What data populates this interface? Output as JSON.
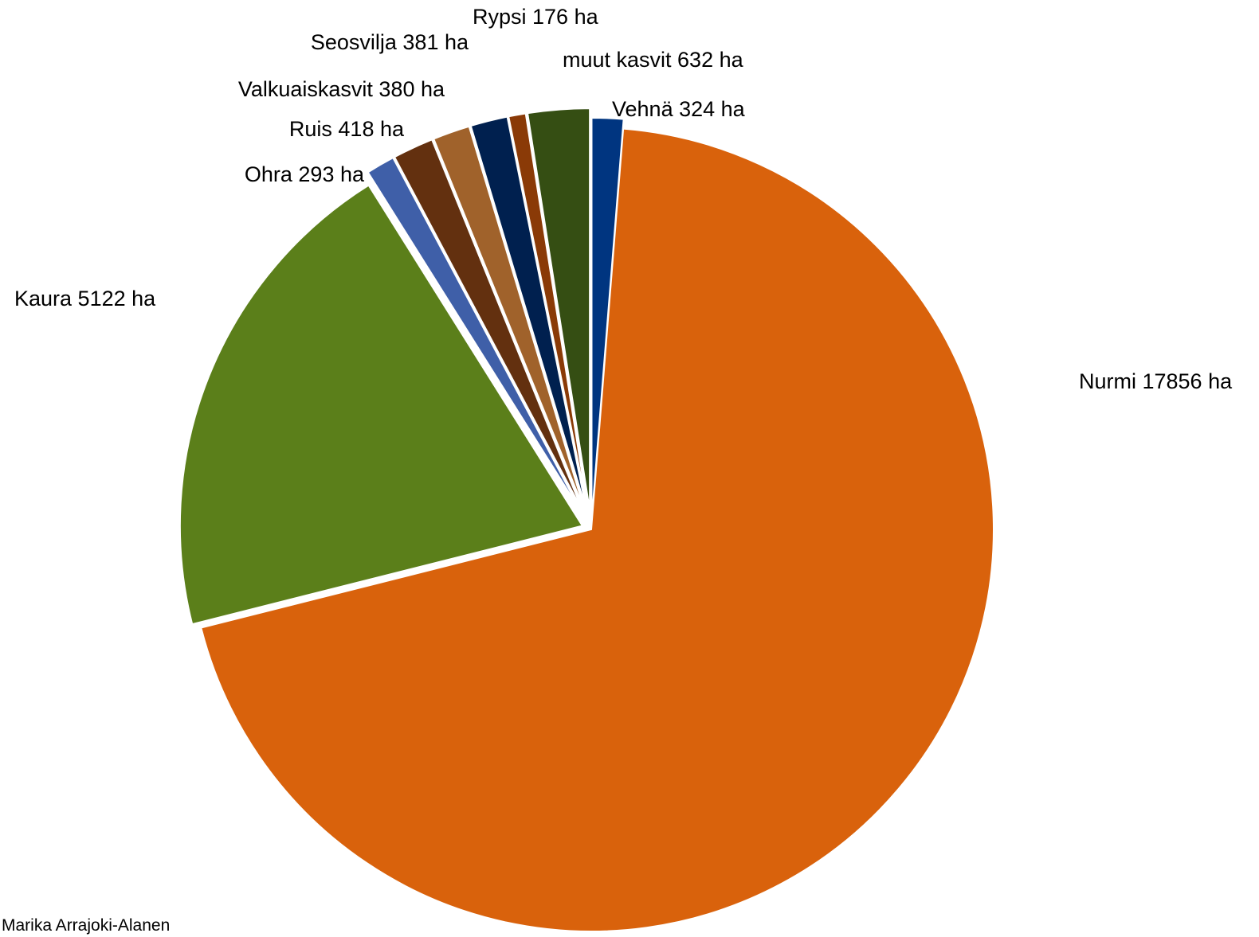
{
  "chart_data": {
    "type": "pie",
    "title": "",
    "start_angle_deg": 0,
    "direction": "clockwise",
    "unit": "ha",
    "slices": [
      {
        "name": "Vehnä",
        "value": 324,
        "label": "Vehnä 324 ha",
        "color": "#003580"
      },
      {
        "name": "Nurmi",
        "value": 17856,
        "label": "Nurmi 17856 ha",
        "color": "#d9620c"
      },
      {
        "name": "Kaura",
        "value": 5122,
        "label": "Kaura 5122 ha",
        "color": "#5b7f1a"
      },
      {
        "name": "Ohra",
        "value": 293,
        "label": "Ohra 293 ha",
        "color": "#3f5fa8"
      },
      {
        "name": "Ruis",
        "value": 418,
        "label": "Ruis 418 ha",
        "color": "#63300f"
      },
      {
        "name": "Valkuaiskasvit",
        "value": 380,
        "label": "Valkuaiskasvit 380 ha",
        "color": "#a0622b"
      },
      {
        "name": "Seosvilja",
        "value": 381,
        "label": "Seosvilja 381 ha",
        "color": "#00204f"
      },
      {
        "name": "Rypsi",
        "value": 176,
        "label": "Rypsi 176 ha",
        "color": "#8a3a07"
      },
      {
        "name": "muut kasvit",
        "value": 632,
        "label": "muut kasvit 632 ha",
        "color": "#354e13"
      }
    ]
  },
  "footer": {
    "credit": "Marika Arrajoki-Alanen"
  }
}
